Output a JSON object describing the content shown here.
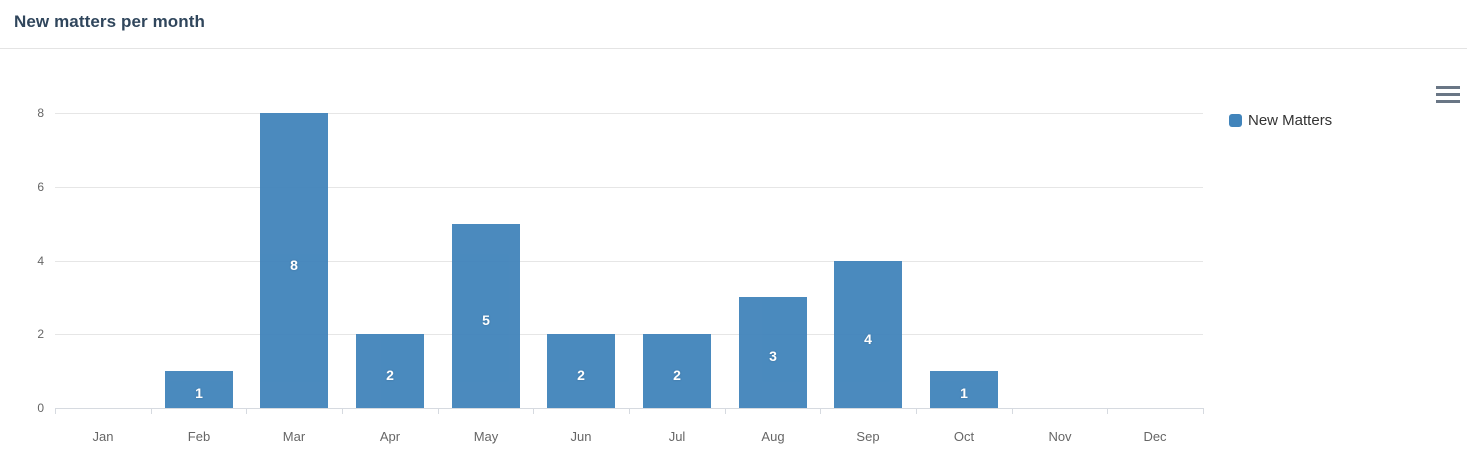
{
  "header": {
    "title": "New matters per month"
  },
  "chart_data": {
    "type": "bar",
    "title": "New matters per month",
    "categories": [
      "Jan",
      "Feb",
      "Mar",
      "Apr",
      "May",
      "Jun",
      "Jul",
      "Aug",
      "Sep",
      "Oct",
      "Nov",
      "Dec"
    ],
    "series": [
      {
        "name": "New Matters",
        "values": [
          0,
          1,
          8,
          2,
          5,
          2,
          2,
          3,
          4,
          1,
          0,
          0
        ]
      }
    ],
    "xlabel": "",
    "ylabel": "",
    "ylim": [
      0,
      8
    ],
    "yticks": [
      0,
      2,
      4,
      6,
      8
    ],
    "grid": true,
    "legend_position": "right",
    "data_labels": "inside-center"
  },
  "legend": {
    "items": [
      {
        "label": "New Matters"
      }
    ]
  },
  "toolbar": {
    "context_menu_icon": "hamburger-icon"
  },
  "colors": {
    "bar": "#4184BB",
    "title_text": "#30465C",
    "axis_label": "#666666",
    "grid_line": "#E6E6E6",
    "axis_line": "#D6DAE0",
    "legend_text": "#333333",
    "menu_icon": "#697685",
    "header_border": "#E4E4E4",
    "value_label": "#FFFFFF",
    "background": "#FFFFFF"
  }
}
